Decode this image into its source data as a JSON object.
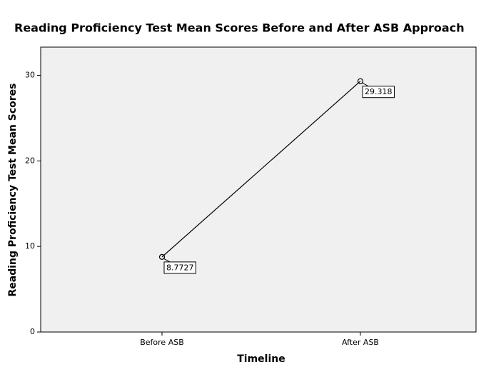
{
  "chart_data": {
    "type": "line",
    "title": "Reading Proficiency Test Mean Scores Before and After ASB Approach",
    "xlabel": "Timeline",
    "ylabel": "Reading Proficiency Test Mean Scores",
    "categories": [
      "Before ASB",
      "After ASB"
    ],
    "values": [
      8.7727,
      29.318
    ],
    "color": "#000000",
    "data_labels": true,
    "ylim": [
      0,
      33.3
    ],
    "yticks": [
      0,
      10,
      20,
      30
    ]
  }
}
